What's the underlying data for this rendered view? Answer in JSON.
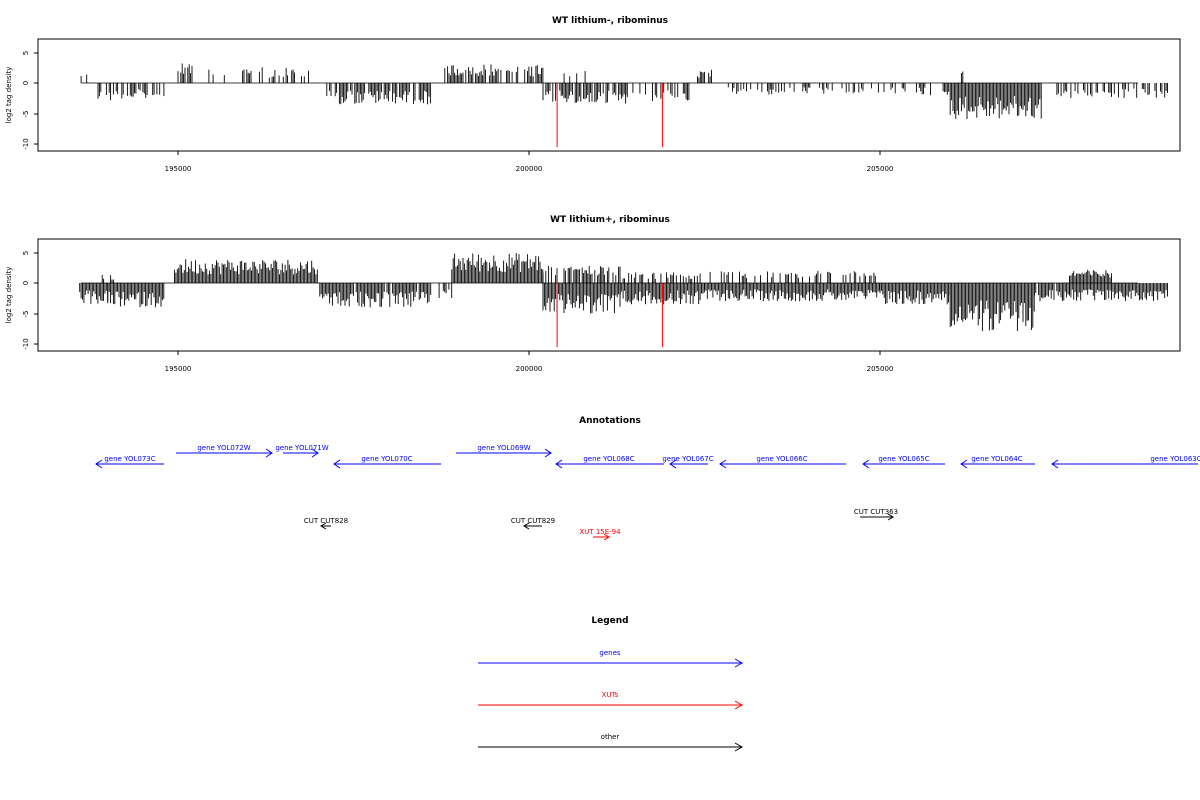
{
  "chart_data": [
    {
      "type": "bar",
      "title": "WT lithium-, ribominus",
      "ylabel": "log2 tag density",
      "xlabel": "",
      "x_ticks": [
        195000,
        200000,
        205000
      ],
      "y_ticks": [
        -10,
        -5,
        0,
        5
      ],
      "ylim": [
        -11,
        7
      ],
      "xlim": [
        193000,
        209500
      ],
      "markers": [
        200400,
        201900
      ],
      "marker_color": "#ff0000",
      "bar_color": "#000000",
      "segments": [
        {
          "x0": 193600,
          "x1": 193700,
          "amp": 1.5,
          "density": 0.4
        },
        {
          "x0": 193800,
          "x1": 194300,
          "amp": -3.0,
          "density": 0.5
        },
        {
          "x0": 194300,
          "x1": 194800,
          "amp": -2.8,
          "density": 0.5
        },
        {
          "x0": 195000,
          "x1": 195200,
          "amp": 3.2,
          "density": 0.8
        },
        {
          "x0": 195400,
          "x1": 195700,
          "amp": 2.5,
          "density": 0.3
        },
        {
          "x0": 195800,
          "x1": 196200,
          "amp": 2.8,
          "density": 0.4
        },
        {
          "x0": 196300,
          "x1": 196900,
          "amp": 2.5,
          "density": 0.4
        },
        {
          "x0": 197000,
          "x1": 197100,
          "amp": 3.0,
          "density": 0.3
        },
        {
          "x0": 197100,
          "x1": 198600,
          "amp": -3.5,
          "density": 0.8
        },
        {
          "x0": 198800,
          "x1": 199500,
          "amp": 3.2,
          "density": 0.8
        },
        {
          "x0": 199500,
          "x1": 200200,
          "amp": 3.0,
          "density": 0.5
        },
        {
          "x0": 200200,
          "x1": 201400,
          "amp": -3.5,
          "density": 0.8
        },
        {
          "x0": 200500,
          "x1": 200800,
          "amp": 2.0,
          "density": 0.4
        },
        {
          "x0": 201400,
          "x1": 202300,
          "amp": -3.0,
          "density": 0.5
        },
        {
          "x0": 202300,
          "x1": 202600,
          "amp": 2.2,
          "density": 0.5
        },
        {
          "x0": 202600,
          "x1": 203800,
          "amp": -2.0,
          "density": 0.3
        },
        {
          "x0": 203800,
          "x1": 205400,
          "amp": -2.0,
          "density": 0.3
        },
        {
          "x0": 205500,
          "x1": 206000,
          "amp": -2.0,
          "density": 0.3
        },
        {
          "x0": 206100,
          "x1": 206200,
          "amp": 2.5,
          "density": 0.5
        },
        {
          "x0": 206000,
          "x1": 207300,
          "amp": -6.0,
          "density": 1.0
        },
        {
          "x0": 207500,
          "x1": 209100,
          "amp": -2.5,
          "density": 0.5
        }
      ]
    },
    {
      "type": "bar",
      "title": "WT lithium+, ribominus",
      "ylabel": "log2 tag density",
      "xlabel": "",
      "x_ticks": [
        195000,
        200000,
        205000
      ],
      "y_ticks": [
        -10,
        -5,
        0,
        5
      ],
      "ylim": [
        -11,
        7
      ],
      "xlim": [
        193000,
        209500
      ],
      "markers": [
        200400,
        201900
      ],
      "marker_color": "#ff0000",
      "bar_color": "#000000",
      "segments": [
        {
          "x0": 193600,
          "x1": 194000,
          "amp": -3.5,
          "density": 1.0
        },
        {
          "x0": 193900,
          "x1": 194100,
          "amp": 1.5,
          "density": 0.5
        },
        {
          "x0": 194000,
          "x1": 194800,
          "amp": -4.0,
          "density": 1.0
        },
        {
          "x0": 194950,
          "x1": 197000,
          "amp": 4.0,
          "density": 1.0
        },
        {
          "x0": 197000,
          "x1": 198600,
          "amp": -4.0,
          "density": 0.9
        },
        {
          "x0": 198600,
          "x1": 198900,
          "amp": -2.5,
          "density": 0.5
        },
        {
          "x0": 198900,
          "x1": 200200,
          "amp": 5.0,
          "density": 1.0
        },
        {
          "x0": 200200,
          "x1": 201300,
          "amp": -5.0,
          "density": 1.0
        },
        {
          "x0": 200200,
          "x1": 201300,
          "amp": 3.0,
          "density": 0.6
        },
        {
          "x0": 201300,
          "x1": 202500,
          "amp": -3.5,
          "density": 1.0
        },
        {
          "x0": 201300,
          "x1": 202500,
          "amp": 1.8,
          "density": 0.5
        },
        {
          "x0": 202500,
          "x1": 205000,
          "amp": -3.0,
          "density": 1.0
        },
        {
          "x0": 202500,
          "x1": 205000,
          "amp": 2.0,
          "density": 0.4
        },
        {
          "x0": 205000,
          "x1": 206000,
          "amp": -3.5,
          "density": 1.0
        },
        {
          "x0": 206000,
          "x1": 207200,
          "amp": -8.0,
          "density": 1.0
        },
        {
          "x0": 207200,
          "x1": 207700,
          "amp": -3.0,
          "density": 0.8
        },
        {
          "x0": 207700,
          "x1": 208300,
          "amp": 2.2,
          "density": 1.0
        },
        {
          "x0": 207700,
          "x1": 209100,
          "amp": -3.0,
          "density": 1.0
        }
      ]
    }
  ],
  "annotations": {
    "title": "Annotations",
    "genes": [
      {
        "label": "gene YOL073C",
        "dir": "left"
      },
      {
        "label": "gene YOL072W",
        "dir": "right"
      },
      {
        "label": "gene YOL071W",
        "dir": "right"
      },
      {
        "label": "gene YOL070C",
        "dir": "left"
      },
      {
        "label": "gene YOL069W",
        "dir": "right"
      },
      {
        "label": "gene YOL068C",
        "dir": "left"
      },
      {
        "label": "gene YOL067C",
        "dir": "left"
      },
      {
        "label": "gene YOL066C",
        "dir": "left"
      },
      {
        "label": "gene YOL065C",
        "dir": "left"
      },
      {
        "label": "gene YOL064C",
        "dir": "left"
      },
      {
        "label": "gene YOL063C",
        "dir": "left"
      }
    ],
    "other": [
      {
        "label": "CUT CUT828",
        "dir": "left"
      },
      {
        "label": "CUT CUT829",
        "dir": "left"
      },
      {
        "label": "CUT CUT363",
        "dir": "right"
      }
    ],
    "xuts": [
      {
        "label": "XUT 15E-94",
        "dir": "right"
      }
    ]
  },
  "legend": {
    "title": "Legend",
    "items": [
      {
        "label": "genes",
        "color": "#0000ff"
      },
      {
        "label": "XUTs",
        "color": "#ff0000"
      },
      {
        "label": "other",
        "color": "#000000"
      }
    ]
  }
}
